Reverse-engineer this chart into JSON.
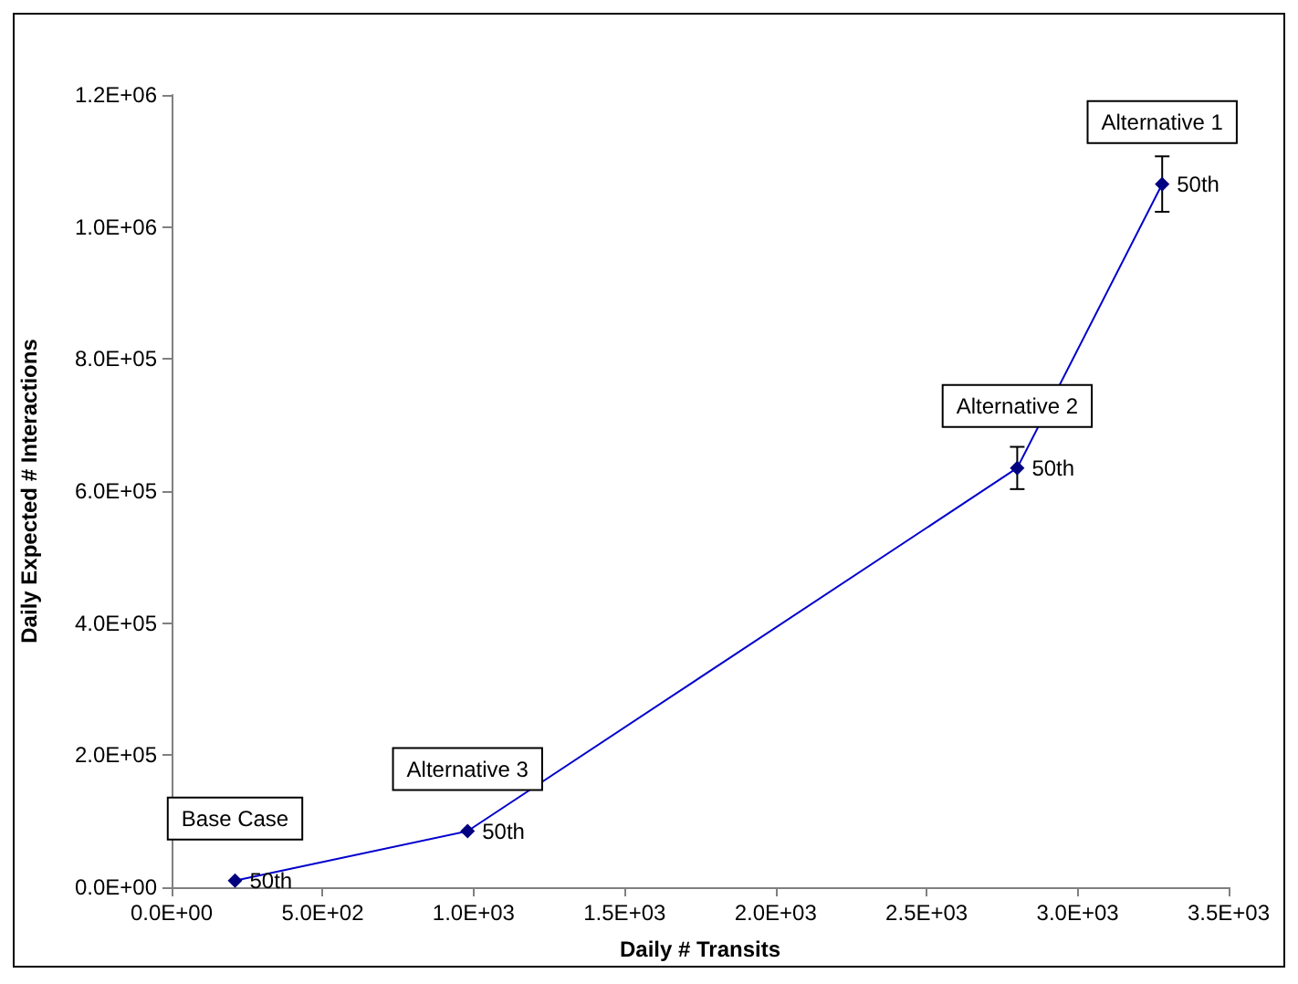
{
  "chart_data": {
    "type": "line",
    "xlabel": "Daily # Transits",
    "ylabel": "Daily Expected # Interactions",
    "x": [
      210,
      980,
      2800,
      3280
    ],
    "series": [
      {
        "color": "#000080",
        "values": [
          10000,
          85000,
          635000,
          1065000
        ],
        "errors": [
          null,
          null,
          32000,
          42000
        ]
      }
    ],
    "xlim": [
      0,
      3500
    ],
    "xticks": [
      {
        "value": 0,
        "label": "0.0E+00"
      },
      {
        "value": 500,
        "label": "5.0E+02"
      },
      {
        "value": 1000,
        "label": "1.0E+03"
      },
      {
        "value": 1500,
        "label": "1.5E+03"
      },
      {
        "value": 2000,
        "label": "2.0E+03"
      },
      {
        "value": 2500,
        "label": "2.5E+03"
      },
      {
        "value": 3000,
        "label": "3.0E+03"
      },
      {
        "value": 3500,
        "label": "3.5E+03"
      }
    ],
    "ylim": [
      0,
      1200000
    ],
    "yticks": [
      {
        "value": 0,
        "label": "0.0E+00"
      },
      {
        "value": 200000,
        "label": "2.0E+05"
      },
      {
        "value": 400000,
        "label": "4.0E+05"
      },
      {
        "value": 600000,
        "label": "6.0E+05"
      },
      {
        "value": 800000,
        "label": "8.0E+05"
      },
      {
        "value": 1000000,
        "label": "1.0E+06"
      },
      {
        "value": 1200000,
        "label": "1.2E+06"
      }
    ],
    "annotations": [
      {
        "text": "Base Case",
        "x": 210,
        "y": 10000
      },
      {
        "text": "50th",
        "x": 210,
        "y": 10000
      },
      {
        "text": "Alternative 3",
        "x": 980,
        "y": 85000
      },
      {
        "text": "50th",
        "x": 980,
        "y": 85000
      },
      {
        "text": "Alternative 2",
        "x": 2800,
        "y": 635000
      },
      {
        "text": "50th",
        "x": 2800,
        "y": 635000
      },
      {
        "text": "Alternative 1",
        "x": 3280,
        "y": 1065000
      },
      {
        "text": "50th",
        "x": 3280,
        "y": 1065000
      }
    ],
    "grid": false,
    "marker": "diamond",
    "line_style": "solid"
  }
}
